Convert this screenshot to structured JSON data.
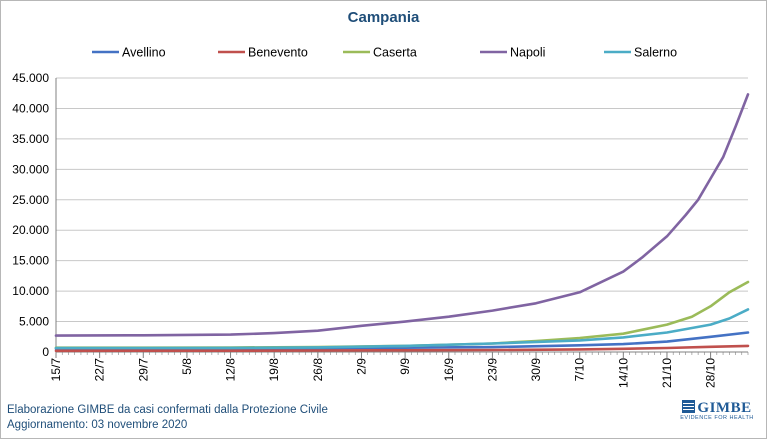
{
  "chart_data": {
    "type": "line",
    "title": "Campania",
    "xlabel": "",
    "ylabel": "",
    "ylim": [
      0,
      45000
    ],
    "yticks": [
      0,
      5000,
      10000,
      15000,
      20000,
      25000,
      30000,
      35000,
      40000,
      45000
    ],
    "ytick_labels": [
      "0",
      "5.000",
      "10.000",
      "15.000",
      "20.000",
      "25.000",
      "30.000",
      "35.000",
      "40.000",
      "45.000"
    ],
    "xticks": [
      "15/7",
      "22/7",
      "29/7",
      "5/8",
      "12/8",
      "19/8",
      "26/8",
      "2/9",
      "9/9",
      "16/9",
      "23/9",
      "30/9",
      "7/10",
      "14/10",
      "21/10",
      "28/10"
    ],
    "x_start": "15/7",
    "x_end": "3/11",
    "grid": true,
    "legend_position": "top",
    "series": [
      {
        "name": "Avellino",
        "color": "#4472c4",
        "points": [
          [
            "15/7",
            520
          ],
          [
            "29/7",
            540
          ],
          [
            "12/8",
            560
          ],
          [
            "26/8",
            600
          ],
          [
            "9/9",
            700
          ],
          [
            "23/9",
            800
          ],
          [
            "7/10",
            1100
          ],
          [
            "14/10",
            1300
          ],
          [
            "21/10",
            1700
          ],
          [
            "28/10",
            2500
          ],
          [
            "3/11",
            3200
          ]
        ]
      },
      {
        "name": "Benevento",
        "color": "#c0504d",
        "points": [
          [
            "15/7",
            200
          ],
          [
            "29/7",
            210
          ],
          [
            "12/8",
            220
          ],
          [
            "26/8",
            240
          ],
          [
            "9/9",
            280
          ],
          [
            "23/9",
            330
          ],
          [
            "7/10",
            420
          ],
          [
            "14/10",
            520
          ],
          [
            "21/10",
            650
          ],
          [
            "28/10",
            850
          ],
          [
            "3/11",
            1000
          ]
        ]
      },
      {
        "name": "Caserta",
        "color": "#9bbb59",
        "points": [
          [
            "15/7",
            700
          ],
          [
            "29/7",
            710
          ],
          [
            "12/8",
            740
          ],
          [
            "26/8",
            820
          ],
          [
            "9/9",
            1000
          ],
          [
            "23/9",
            1400
          ],
          [
            "30/9",
            1800
          ],
          [
            "7/10",
            2300
          ],
          [
            "14/10",
            3000
          ],
          [
            "21/10",
            4500
          ],
          [
            "25/10",
            5800
          ],
          [
            "28/10",
            7500
          ],
          [
            "31/10",
            9800
          ],
          [
            "3/11",
            11500
          ]
        ]
      },
      {
        "name": "Napoli",
        "color": "#8064a2",
        "points": [
          [
            "15/7",
            2700
          ],
          [
            "29/7",
            2750
          ],
          [
            "12/8",
            2850
          ],
          [
            "19/8",
            3100
          ],
          [
            "26/8",
            3500
          ],
          [
            "2/9",
            4300
          ],
          [
            "9/9",
            5000
          ],
          [
            "16/9",
            5800
          ],
          [
            "23/9",
            6800
          ],
          [
            "30/9",
            8000
          ],
          [
            "7/10",
            9800
          ],
          [
            "14/10",
            13200
          ],
          [
            "17/10",
            15500
          ],
          [
            "21/10",
            19000
          ],
          [
            "24/10",
            22500
          ],
          [
            "26/10",
            25000
          ],
          [
            "28/10",
            28500
          ],
          [
            "30/10",
            32000
          ],
          [
            "1/11",
            37000
          ],
          [
            "3/11",
            42300
          ]
        ]
      },
      {
        "name": "Salerno",
        "color": "#4bacc6",
        "points": [
          [
            "15/7",
            650
          ],
          [
            "29/7",
            660
          ],
          [
            "12/8",
            680
          ],
          [
            "26/8",
            750
          ],
          [
            "9/9",
            1000
          ],
          [
            "23/9",
            1400
          ],
          [
            "7/10",
            1900
          ],
          [
            "14/10",
            2400
          ],
          [
            "21/10",
            3200
          ],
          [
            "28/10",
            4500
          ],
          [
            "31/10",
            5500
          ],
          [
            "3/11",
            7000
          ]
        ]
      }
    ]
  },
  "footer": {
    "line1": "Elaborazione GIMBE da casi confermati dalla Protezione Civile",
    "line2": "Aggiornamento: 03 novembre 2020"
  },
  "logo": {
    "name": "GIMBE",
    "tagline": "EVIDENCE FOR HEALTH"
  }
}
